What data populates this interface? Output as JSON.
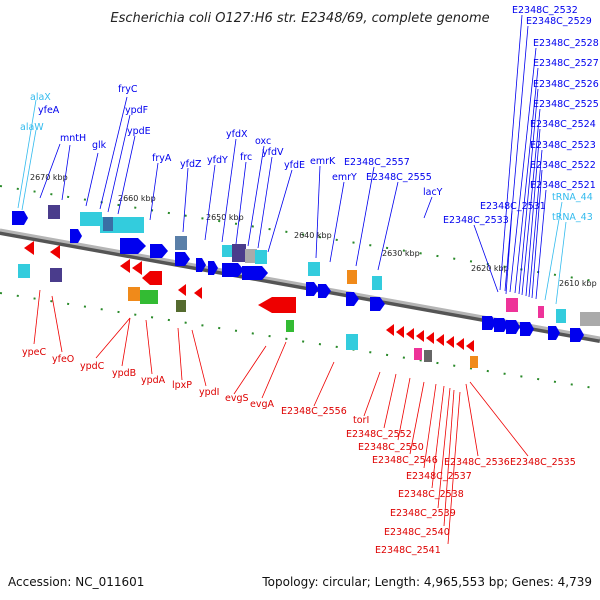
{
  "title": "Escherichia coli O127:H6 str. E2348/69, complete genome",
  "footer": {
    "accession": "Accession: NC_011601",
    "topology": "Topology: circular; Length: 4,965,553 bp; Genes: 4,739"
  },
  "colors": {
    "forward": "#0000ee",
    "reverse": "#ee0000",
    "rna": "#33bbee",
    "backbone": "#808080",
    "tick": "#2a8a2a"
  },
  "kbp_ticks": [
    "2670 kbp",
    "2660 kbp",
    "2650 kbp",
    "2640 kbp",
    "2630 kbp",
    "2620 kbp",
    "2610 kbp"
  ],
  "forward_labels": [
    "alaX",
    "alaW",
    "yfeA",
    "mntH",
    "glk",
    "fryC",
    "ypdF",
    "ypdE",
    "fryA",
    "yfdZ",
    "yfdY",
    "yfdX",
    "frc",
    "oxc",
    "yfdV",
    "yfdE",
    "emrK",
    "emrY",
    "E2348C_2557",
    "E2348C_2555",
    "lacY",
    "E2348C_2533",
    "E2348C_2531",
    "E2348C_2532",
    "E2348C_2529",
    "E2348C_2528",
    "E2348C_2527",
    "E2348C_2526",
    "E2348C_2525",
    "E2348C_2524",
    "E2348C_2523",
    "E2348C_2522",
    "E2348C_2521",
    "tRNA_44",
    "tRNA_43"
  ],
  "reverse_labels": [
    "ypeC",
    "yfeO",
    "ypdC",
    "ypdB",
    "ypdA",
    "lpxP",
    "ypdI",
    "evgS",
    "evgA",
    "E2348C_2556",
    "torI",
    "E2348C_2552",
    "E2348C_2550",
    "E2348C_2546",
    "E2348C_2537",
    "E2348C_2536",
    "E2348C_2535",
    "E2348C_2538",
    "E2348C_2539",
    "E2348C_2540",
    "E2348C_2541"
  ]
}
